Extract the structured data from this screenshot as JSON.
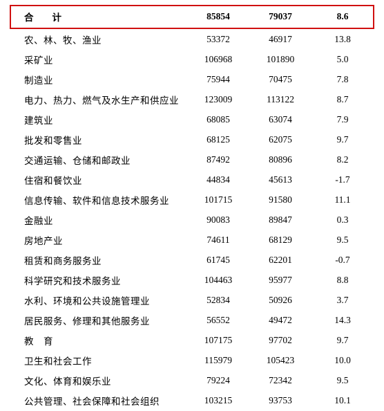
{
  "summary": {
    "label": "合计",
    "col1": "85854",
    "col2": "79037",
    "col3": "8.6"
  },
  "rows": [
    {
      "label": "农、林、牧、渔业",
      "col1": "53372",
      "col2": "46917",
      "col3": "13.8"
    },
    {
      "label": "采矿业",
      "col1": "106968",
      "col2": "101890",
      "col3": "5.0"
    },
    {
      "label": "制造业",
      "col1": "75944",
      "col2": "70475",
      "col3": "7.8"
    },
    {
      "label": "电力、热力、燃气及水生产和供应业",
      "col1": "123009",
      "col2": "113122",
      "col3": "8.7"
    },
    {
      "label": "建筑业",
      "col1": "68085",
      "col2": "63074",
      "col3": "7.9"
    },
    {
      "label": "批发和零售业",
      "col1": "68125",
      "col2": "62075",
      "col3": "9.7"
    },
    {
      "label": "交通运输、仓储和邮政业",
      "col1": "87492",
      "col2": "80896",
      "col3": "8.2"
    },
    {
      "label": "住宿和餐饮业",
      "col1": "44834",
      "col2": "45613",
      "col3": "-1.7"
    },
    {
      "label": "信息传输、软件和信息技术服务业",
      "col1": "101715",
      "col2": "91580",
      "col3": "11.1"
    },
    {
      "label": "金融业",
      "col1": "90083",
      "col2": "89847",
      "col3": "0.3"
    },
    {
      "label": "房地产业",
      "col1": "74611",
      "col2": "68129",
      "col3": "9.5"
    },
    {
      "label": "租赁和商务服务业",
      "col1": "61745",
      "col2": "62201",
      "col3": "-0.7"
    },
    {
      "label": "科学研究和技术服务业",
      "col1": "104463",
      "col2": "95977",
      "col3": "8.8"
    },
    {
      "label": "水利、环境和公共设施管理业",
      "col1": "52834",
      "col2": "50926",
      "col3": "3.7"
    },
    {
      "label": "居民服务、修理和其他服务业",
      "col1": "56552",
      "col2": "49472",
      "col3": "14.3"
    },
    {
      "label": "教　育",
      "col1": "107175",
      "col2": "97702",
      "col3": "9.7"
    },
    {
      "label": "卫生和社会工作",
      "col1": "115979",
      "col2": "105423",
      "col3": "10.0"
    },
    {
      "label": "文化、体育和娱乐业",
      "col1": "79224",
      "col2": "72342",
      "col3": "9.5"
    },
    {
      "label": "公共管理、社会保障和社会组织",
      "col1": "103215",
      "col2": "93753",
      "col3": "10.1"
    }
  ],
  "highlight_border_color": "#d01010"
}
